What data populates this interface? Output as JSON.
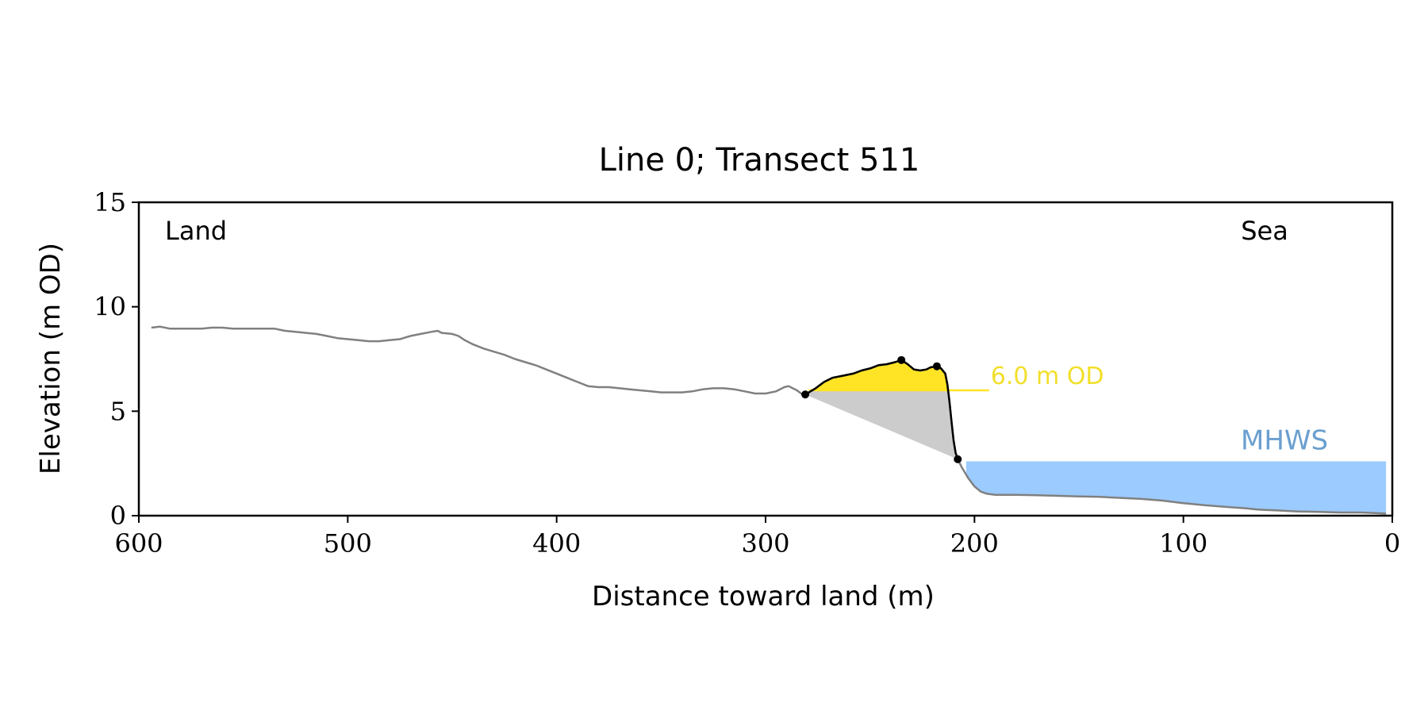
{
  "chart_data": {
    "type": "line",
    "title": "Line 0; Transect 511",
    "xlabel": "Distance toward land (m)",
    "ylabel": "Elevation (m OD)",
    "x_reversed": true,
    "xlim": [
      600,
      0
    ],
    "ylim": [
      0,
      15
    ],
    "xticks": [
      600,
      500,
      400,
      300,
      200,
      100,
      0
    ],
    "yticks": [
      0,
      5,
      10,
      15
    ],
    "grid": false,
    "corner_labels": {
      "left": "Land",
      "right": "Sea"
    },
    "colors": {
      "profile": "#808080",
      "dune": "#000000",
      "dune_fill": "#ffe426",
      "wedge_fill": "#cccccc",
      "mhws_fill": "#9ccbff",
      "mhws_label": "#6a9fd0",
      "od_label": "#f2df2a"
    },
    "profile": {
      "x": [
        594,
        590,
        585,
        580,
        575,
        570,
        565,
        560,
        555,
        550,
        545,
        540,
        535,
        530,
        525,
        520,
        515,
        510,
        505,
        500,
        495,
        490,
        485,
        480,
        475,
        470,
        465,
        460,
        457,
        455,
        450,
        447,
        444,
        440,
        435,
        430,
        425,
        420,
        415,
        410,
        405,
        400,
        395,
        390,
        385,
        380,
        375,
        370,
        365,
        360,
        355,
        350,
        345,
        340,
        335,
        330,
        325,
        320,
        315,
        310,
        305,
        300,
        295,
        291,
        289,
        287,
        285,
        283,
        281,
        276,
        272,
        268,
        263,
        258,
        254,
        250,
        246,
        242,
        238,
        235,
        232,
        229,
        226,
        223,
        221,
        218,
        216,
        214,
        213,
        212,
        211,
        210,
        209,
        208,
        206,
        203,
        200,
        197,
        194,
        190,
        180,
        170,
        160,
        150,
        140,
        130,
        120,
        110,
        100,
        90,
        80,
        70,
        65,
        62,
        55,
        45,
        35,
        25,
        15,
        8,
        3
      ],
      "y": [
        9.0,
        9.05,
        8.95,
        8.95,
        8.95,
        8.95,
        9.0,
        9.0,
        8.95,
        8.95,
        8.95,
        8.95,
        8.95,
        8.85,
        8.8,
        8.75,
        8.7,
        8.6,
        8.5,
        8.45,
        8.4,
        8.35,
        8.35,
        8.4,
        8.45,
        8.6,
        8.7,
        8.8,
        8.85,
        8.75,
        8.7,
        8.6,
        8.4,
        8.2,
        8.0,
        7.85,
        7.7,
        7.5,
        7.35,
        7.2,
        7.0,
        6.8,
        6.6,
        6.4,
        6.2,
        6.15,
        6.15,
        6.1,
        6.05,
        6.0,
        5.95,
        5.9,
        5.9,
        5.9,
        5.95,
        6.05,
        6.1,
        6.1,
        6.05,
        5.95,
        5.85,
        5.85,
        5.95,
        6.15,
        6.2,
        6.1,
        6.0,
        5.85,
        5.8,
        6.1,
        6.4,
        6.6,
        6.7,
        6.8,
        6.95,
        7.05,
        7.2,
        7.25,
        7.35,
        7.45,
        7.25,
        7.0,
        6.95,
        7.0,
        7.1,
        7.15,
        7.05,
        6.8,
        6.3,
        5.5,
        4.5,
        3.6,
        3.0,
        2.7,
        2.3,
        1.8,
        1.4,
        1.15,
        1.05,
        1.0,
        1.0,
        0.98,
        0.95,
        0.92,
        0.9,
        0.85,
        0.8,
        0.72,
        0.6,
        0.5,
        0.42,
        0.35,
        0.3,
        0.28,
        0.25,
        0.2,
        0.18,
        0.15,
        0.15,
        0.12,
        0.1
      ]
    },
    "dune": {
      "x": [
        281,
        276,
        272,
        268,
        263,
        258,
        254,
        250,
        246,
        242,
        238,
        235,
        232,
        229,
        226,
        223,
        221,
        218,
        216,
        214,
        213,
        212,
        211,
        210,
        209,
        208
      ],
      "y": [
        5.8,
        6.1,
        6.4,
        6.6,
        6.7,
        6.8,
        6.95,
        7.05,
        7.2,
        7.25,
        7.35,
        7.45,
        7.25,
        7.0,
        6.95,
        7.0,
        7.1,
        7.15,
        7.05,
        6.8,
        6.3,
        5.5,
        4.5,
        3.6,
        3.0,
        2.7
      ]
    },
    "markers": {
      "x": [
        281,
        235,
        218,
        208
      ],
      "y": [
        5.8,
        7.45,
        7.15,
        2.7
      ]
    },
    "threshold": {
      "value": 6.0,
      "x_end": 193,
      "label": "6.0 m OD"
    },
    "mhws": {
      "value": 2.6,
      "x_start": 204,
      "x_end": 3,
      "label": "MHWS"
    }
  }
}
